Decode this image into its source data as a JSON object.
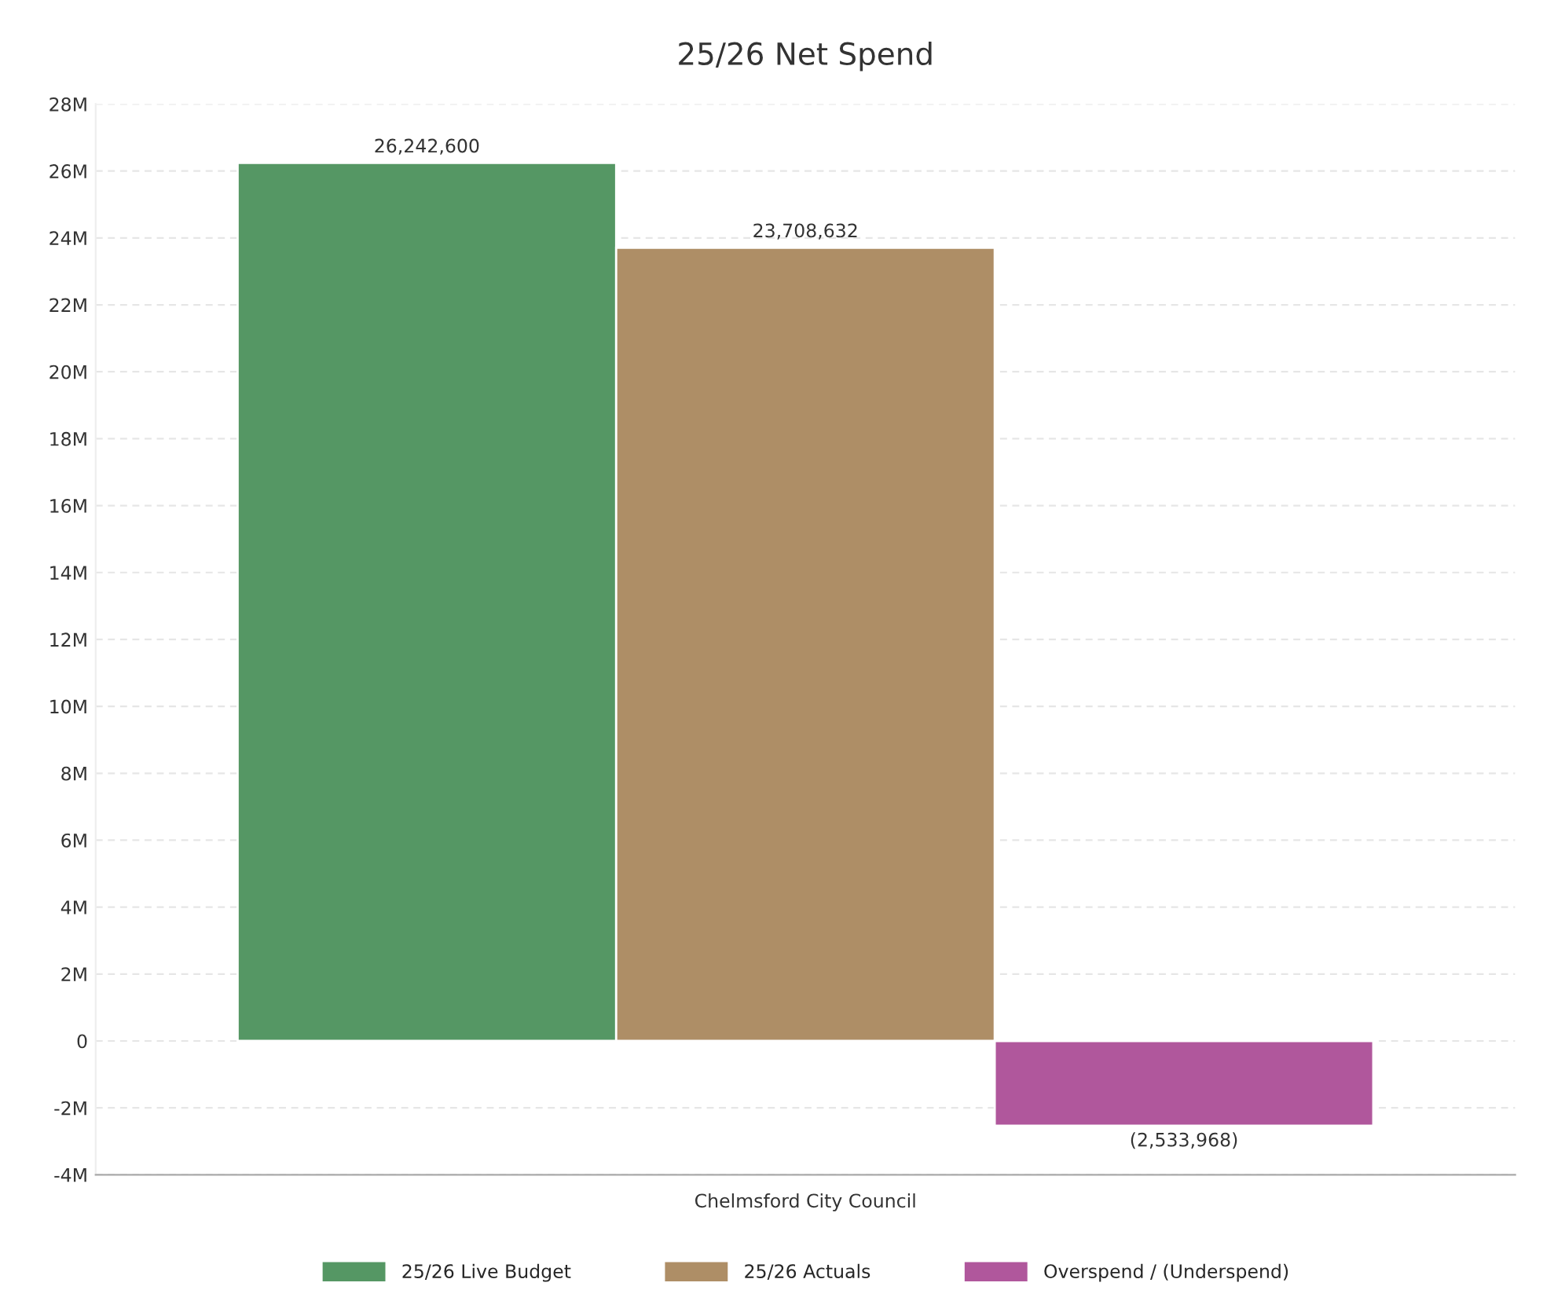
{
  "chart_data": {
    "type": "bar",
    "title": "25/26 Net Spend",
    "categories": [
      "Chelmsford City Council"
    ],
    "series": [
      {
        "name": "25/26 Live Budget",
        "color": "#559764",
        "values": [
          26242600
        ],
        "value_labels": [
          "26,242,600"
        ]
      },
      {
        "name": "25/26 Actuals",
        "color": "#ae8e66",
        "values": [
          23708632
        ],
        "value_labels": [
          "23,708,632"
        ]
      },
      {
        "name": "Overspend / (Underspend)",
        "color": "#b0579c",
        "values": [
          -2533968
        ],
        "value_labels": [
          "(2,533,968)"
        ]
      }
    ],
    "ylim": [
      -4000000,
      28000000
    ],
    "yticks": [
      {
        "value": -4000000,
        "label": "-4M"
      },
      {
        "value": -2000000,
        "label": "-2M"
      },
      0,
      {
        "value": 2000000,
        "label": "2M"
      },
      {
        "value": 4000000,
        "label": "4M"
      },
      {
        "value": 6000000,
        "label": "6M"
      },
      {
        "value": 8000000,
        "label": "8M"
      },
      {
        "value": 10000000,
        "label": "10M"
      },
      {
        "value": 12000000,
        "label": "12M"
      },
      {
        "value": 14000000,
        "label": "14M"
      },
      {
        "value": 16000000,
        "label": "16M"
      },
      {
        "value": 18000000,
        "label": "18M"
      },
      {
        "value": 20000000,
        "label": "20M"
      },
      {
        "value": 22000000,
        "label": "22M"
      },
      {
        "value": 24000000,
        "label": "24M"
      },
      {
        "value": 26000000,
        "label": "26M"
      },
      {
        "value": 28000000,
        "label": "28M"
      }
    ],
    "grid": "y",
    "legend": "bottom"
  }
}
